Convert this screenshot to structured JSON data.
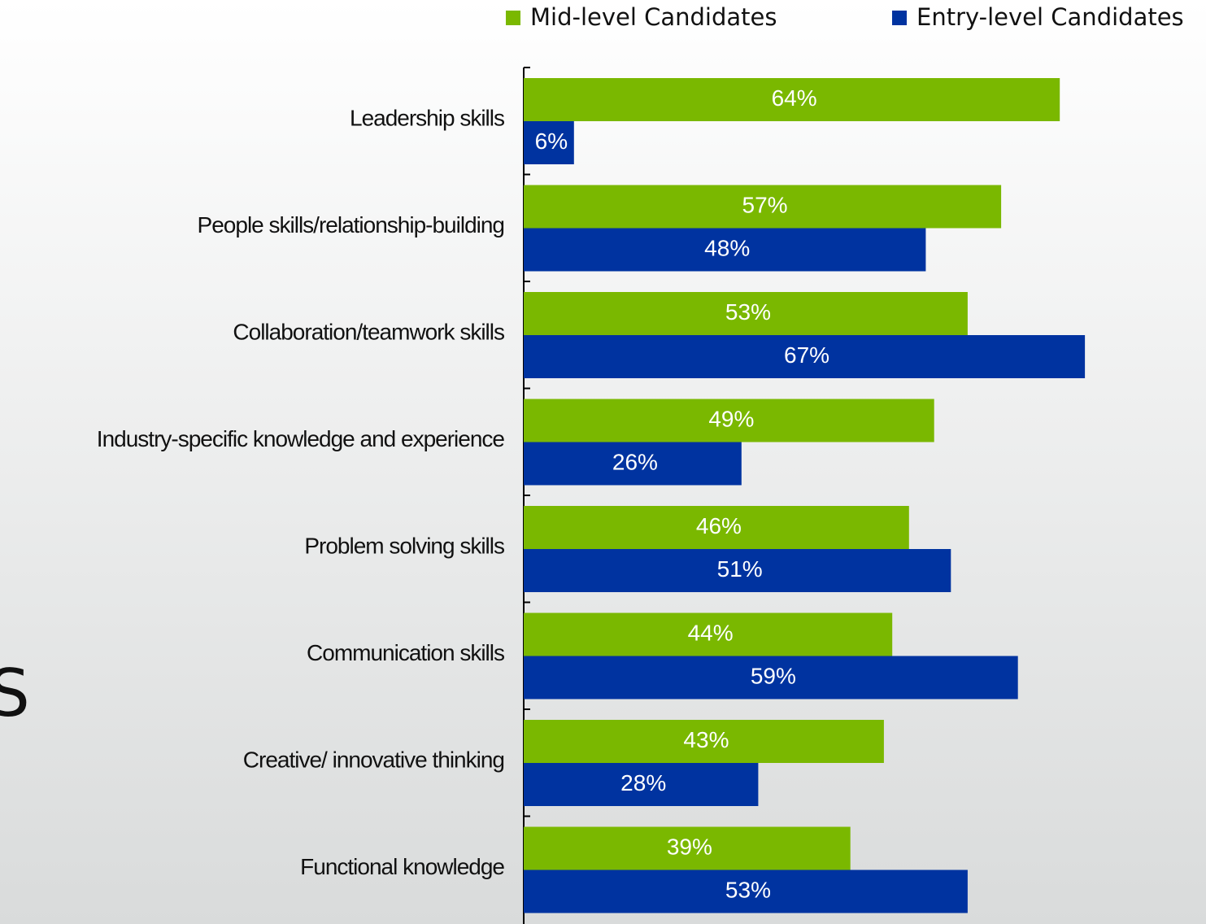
{
  "chart_data": {
    "type": "barh",
    "annotation": "S",
    "categories": [
      "Leadership skills",
      "People skills/relationship-building",
      "Collaboration/teamwork skills",
      "Industry-specific knowledge and experience",
      "Problem solving skills",
      "Communication skills",
      "Creative/ innovative thinking",
      "Functional knowledge"
    ],
    "series": [
      {
        "name": "Mid-level Candidates",
        "color": "#7ab800",
        "values": [
          64,
          57,
          53,
          49,
          46,
          44,
          43,
          39
        ],
        "value_labels": [
          "64%",
          "57%",
          "53%",
          "49%",
          "46%",
          "44%",
          "43%",
          "39%"
        ]
      },
      {
        "name": "Entry-level Candidates",
        "color": "#0033a0",
        "values": [
          6,
          48,
          67,
          26,
          51,
          59,
          28,
          53
        ],
        "value_labels": [
          "6%",
          "48%",
          "67%",
          "26%",
          "51%",
          "59%",
          "28%",
          "53%"
        ]
      }
    ],
    "xlim": [
      0,
      70
    ]
  }
}
